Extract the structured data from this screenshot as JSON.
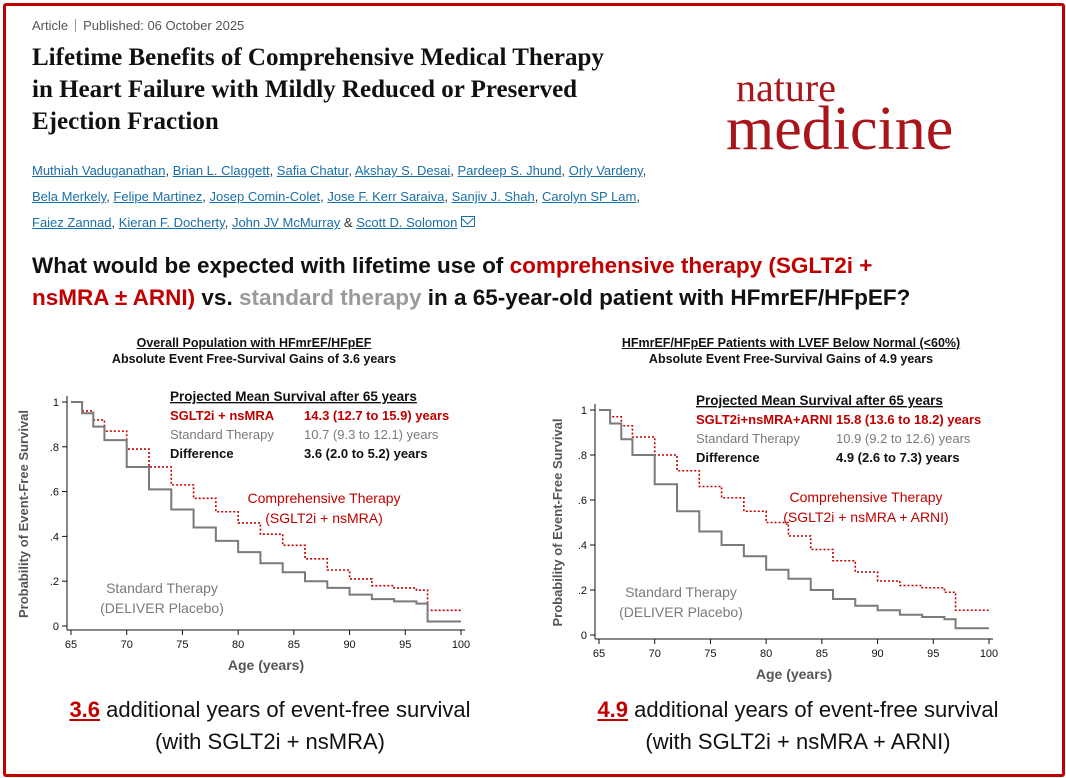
{
  "article": {
    "type": "Article",
    "published": "Published: 06 October 2025",
    "title_lines": [
      "Lifetime Benefits of Comprehensive Medical Therapy",
      "in Heart Failure with Mildly Reduced or Preserved",
      "Ejection Fraction"
    ],
    "journal_line1": "nature",
    "journal_line2": "medicine",
    "authors": [
      [
        "Muthiah Vaduganathan",
        "Brian L. Claggett",
        "Safia Chatur",
        "Akshay S. Desai",
        "Pardeep S. Jhund",
        "Orly Vardeny"
      ],
      [
        "Bela Merkely",
        "Felipe Martinez",
        "Josep Comin-Colet",
        "Jose F. Kerr Saraiva",
        "Sanjiv J. Shah",
        "Carolyn SP Lam"
      ],
      [
        "Faiez Zannad",
        "Kieran F. Docherty",
        "John JV McMurray",
        "Scott D. Solomon"
      ]
    ],
    "author_sep": ", ",
    "author_amp": " & "
  },
  "question": {
    "p1": "What would be expected with lifetime use of ",
    "p2": "comprehensive therapy (SGLT2i +",
    "p3": "nsMRA ± ARNI)",
    "p4": " vs. ",
    "p5": "standard therapy",
    "p6": " in a 65-year-old patient with HFmrEF/HFpEF?"
  },
  "colors": {
    "red": "#c00000",
    "gray": "#7a7a7a",
    "dark_red": "#a8151b"
  },
  "chart_data": [
    {
      "type": "line",
      "title": "Overall Population with HFmrEF/HFpEF",
      "subtitle": "Absolute Event Free-Survival Gains of 3.6 years",
      "xlabel": "Age (years)",
      "ylabel": "Probability of Event-Free Survival",
      "xlim": [
        65,
        100
      ],
      "ylim": [
        0,
        1
      ],
      "xticks": [
        65,
        70,
        75,
        80,
        85,
        90,
        95,
        100
      ],
      "yticks": [
        0,
        0.2,
        0.4,
        0.6,
        0.8,
        1
      ],
      "ytick_labels": [
        "0",
        ".2",
        ".4",
        ".6",
        ".8",
        "1"
      ],
      "table": {
        "header": "Projected Mean Survival after 65 years",
        "rows": [
          {
            "label": "SGLT2i + nsMRA",
            "value": "14.3 (12.7 to 15.9) years",
            "color": "#c00000"
          },
          {
            "label": "Standard Therapy",
            "value": "10.7 (9.3 to 12.1) years",
            "color": "#7a7a7a"
          },
          {
            "label": "Difference",
            "value": "3.6 (2.0 to 5.2) years",
            "color": "#111111"
          }
        ]
      },
      "series": [
        {
          "name": "Comprehensive Therapy (SGLT2i + nsMRA)",
          "label_lines": [
            "Comprehensive Therapy",
            "(SGLT2i + nsMRA)"
          ],
          "style": "dotted",
          "color": "#c00000",
          "x": [
            65,
            66,
            67,
            68,
            70,
            72,
            74,
            76,
            78,
            80,
            82,
            84,
            86,
            88,
            90,
            92,
            94,
            96,
            97,
            100
          ],
          "y": [
            1.0,
            0.96,
            0.92,
            0.87,
            0.79,
            0.71,
            0.63,
            0.57,
            0.51,
            0.46,
            0.41,
            0.36,
            0.3,
            0.25,
            0.21,
            0.18,
            0.17,
            0.16,
            0.07,
            0.07
          ]
        },
        {
          "name": "Standard Therapy (DELIVER Placebo)",
          "label_lines": [
            "Standard Therapy",
            "(DELIVER Placebo)"
          ],
          "style": "solid",
          "color": "#7a7a7a",
          "x": [
            65,
            66,
            67,
            68,
            70,
            72,
            74,
            76,
            78,
            80,
            82,
            84,
            86,
            88,
            90,
            92,
            94,
            96,
            97,
            100
          ],
          "y": [
            1.0,
            0.95,
            0.89,
            0.83,
            0.71,
            0.61,
            0.52,
            0.44,
            0.38,
            0.33,
            0.28,
            0.24,
            0.2,
            0.17,
            0.14,
            0.12,
            0.11,
            0.1,
            0.02,
            0.02
          ]
        }
      ]
    },
    {
      "type": "line",
      "title": "HFmrEF/HFpEF Patients with LVEF Below Normal (<60%)",
      "subtitle": "Absolute Event Free-Survival Gains of 4.9 years",
      "xlabel": "Age (years)",
      "ylabel": "Probability of Event-Free Survival",
      "xlim": [
        65,
        100
      ],
      "ylim": [
        0,
        1
      ],
      "xticks": [
        65,
        70,
        75,
        80,
        85,
        90,
        95,
        100
      ],
      "yticks": [
        0,
        0.2,
        0.4,
        0.6,
        0.8,
        1
      ],
      "ytick_labels": [
        "0",
        ".2",
        ".4",
        ".6",
        ".8",
        "1"
      ],
      "table": {
        "header": "Projected Mean Survival after 65 years",
        "rows": [
          {
            "label": "SGLT2i+nsMRA+ARNI",
            "value": "15.8 (13.6 to 18.2) years",
            "color": "#c00000"
          },
          {
            "label": "Standard Therapy",
            "value": "10.9 (9.2 to 12.6) years",
            "color": "#7a7a7a"
          },
          {
            "label": "Difference",
            "value": "4.9 (2.6 to 7.3) years",
            "color": "#111111"
          }
        ]
      },
      "series": [
        {
          "name": "Comprehensive Therapy (SGLT2i + nsMRA + ARNI)",
          "label_lines": [
            "Comprehensive Therapy",
            "(SGLT2i + nsMRA + ARNI)"
          ],
          "style": "dotted",
          "color": "#c00000",
          "x": [
            65,
            66,
            67,
            68,
            70,
            72,
            74,
            76,
            78,
            80,
            82,
            84,
            86,
            88,
            90,
            92,
            94,
            96,
            97,
            100
          ],
          "y": [
            1.0,
            0.97,
            0.93,
            0.88,
            0.8,
            0.73,
            0.66,
            0.61,
            0.55,
            0.5,
            0.44,
            0.38,
            0.33,
            0.28,
            0.24,
            0.22,
            0.21,
            0.19,
            0.11,
            0.11
          ]
        },
        {
          "name": "Standard Therapy (DELIVER Placebo)",
          "label_lines": [
            "Standard Therapy",
            "(DELIVER Placebo)"
          ],
          "style": "solid",
          "color": "#7a7a7a",
          "x": [
            65,
            66,
            67,
            68,
            70,
            72,
            74,
            76,
            78,
            80,
            82,
            84,
            86,
            88,
            90,
            92,
            94,
            96,
            97,
            100
          ],
          "y": [
            1.0,
            0.94,
            0.87,
            0.8,
            0.67,
            0.55,
            0.46,
            0.4,
            0.35,
            0.29,
            0.25,
            0.2,
            0.16,
            0.13,
            0.11,
            0.09,
            0.08,
            0.07,
            0.03,
            0.03
          ]
        }
      ]
    }
  ],
  "summaries": [
    {
      "number": "3.6",
      "line1": " additional years of event-free survival",
      "line2": "(with SGLT2i + nsMRA)"
    },
    {
      "number": "4.9",
      "line1": " additional years of event-free survival",
      "line2": "(with SGLT2i + nsMRA + ARNI)"
    }
  ]
}
